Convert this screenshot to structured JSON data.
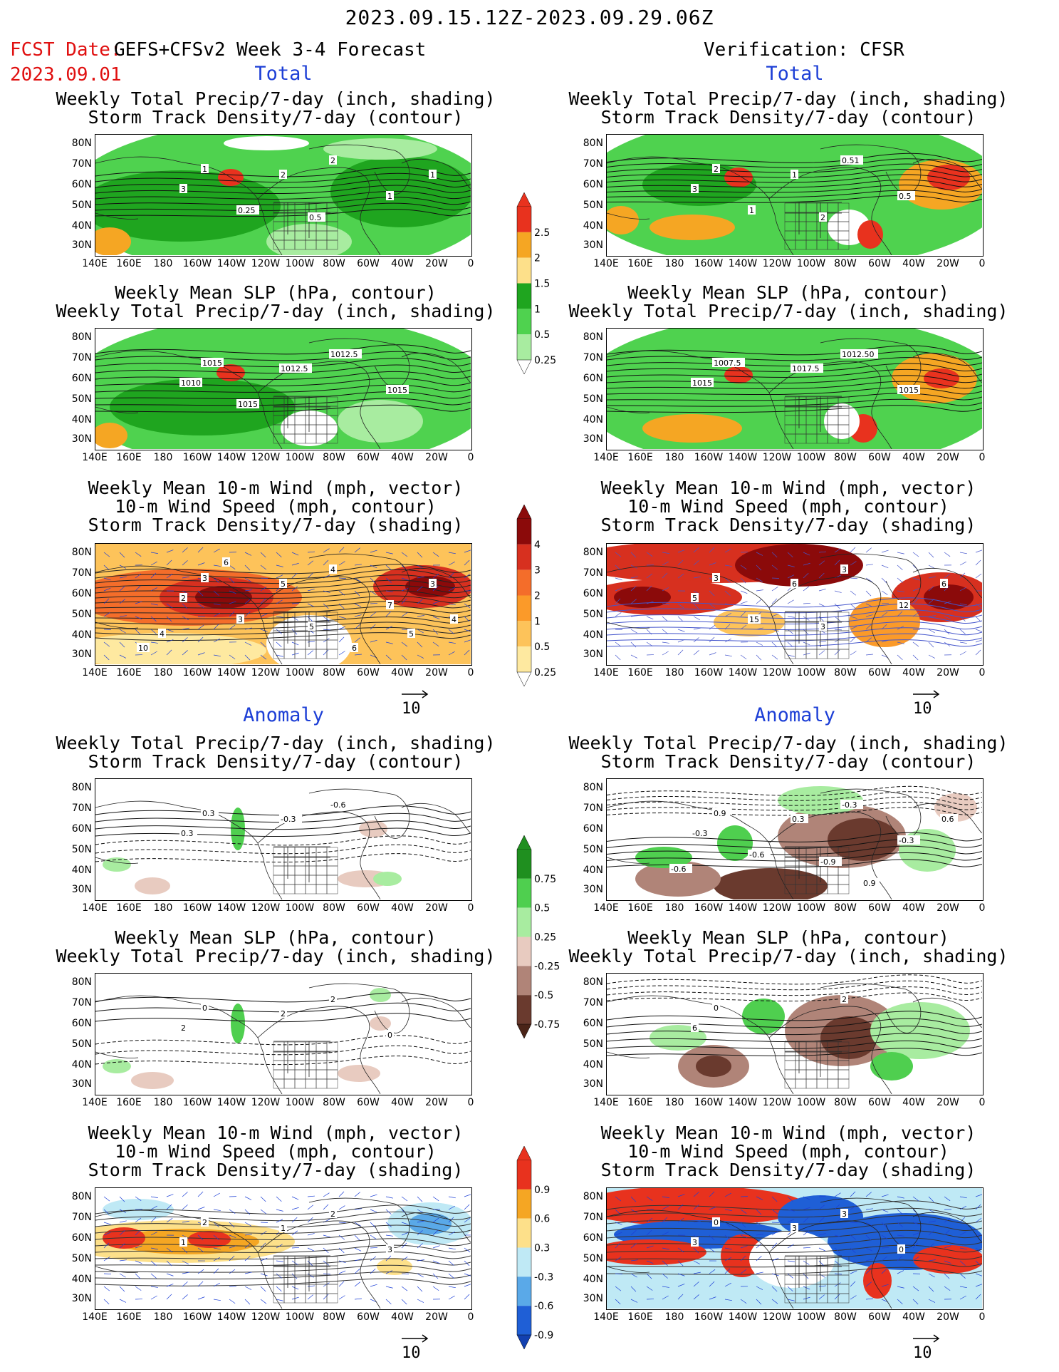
{
  "header": {
    "title": "2023.09.15.12Z-2023.09.29.06Z",
    "fcst_label": "FCST Date:",
    "fcst_model": "GEFS+CFSv2 Week 3-4 Forecast",
    "fcst_date": "2023.09.01",
    "verification": "Verification: CFSR"
  },
  "sections": {
    "total": "Total",
    "anomaly": "Anomaly"
  },
  "titles": {
    "precip_storm": [
      "Weekly Total Precip/7-day (inch, shading)",
      "Storm Track Density/7-day (contour)"
    ],
    "slp_precip": [
      "Weekly Mean SLP (hPa, contour)",
      "Weekly Total Precip/7-day (inch, shading)"
    ],
    "wind_storm": [
      "Weekly Mean 10-m Wind (mph, vector)",
      "10-m Wind Speed (mph, contour)",
      "Storm Track Density/7-day (shading)"
    ]
  },
  "axes": {
    "lat_labels": [
      "80N",
      "70N",
      "60N",
      "50N",
      "40N",
      "30N"
    ],
    "lon_labels": [
      "140E",
      "160E",
      "180",
      "160W",
      "140W",
      "120W",
      "100W",
      "80W",
      "60W",
      "40W",
      "20W",
      "0"
    ]
  },
  "vector_ref": {
    "value": "10"
  },
  "colorbars": {
    "precip_total": {
      "labels": [
        "2.5",
        "2",
        "1.5",
        "1",
        "0.5",
        "0.25"
      ],
      "colors": [
        "#e8321e",
        "#f5a623",
        "#fde08a",
        "#1fa51f",
        "#4fd24f",
        "#a8eca0"
      ]
    },
    "storm_total": {
      "labels": [
        "4",
        "3",
        "2",
        "1",
        "0.5",
        "0.25"
      ],
      "colors": [
        "#8b0a0a",
        "#d7301f",
        "#f46d2a",
        "#fb9a29",
        "#fdc35a",
        "#fee9a0"
      ]
    },
    "precip_anom": {
      "labels": [
        "0.75",
        "0.5",
        "0.25",
        "-0.25",
        "-0.5",
        "-0.75"
      ],
      "colors": [
        "#1f8f1f",
        "#4fcf4f",
        "#a8eca0",
        "#e8cbc0",
        "#b08478",
        "#6a3a2e"
      ]
    },
    "storm_anom": {
      "labels": [
        "0.9",
        "0.6",
        "0.3",
        "-0.3",
        "-0.6",
        "-0.9"
      ],
      "colors": [
        "#e8321e",
        "#f5a623",
        "#fde08a",
        "#bfe9f5",
        "#5aa9e8",
        "#1f5fd6"
      ]
    }
  },
  "contour_labels": {
    "p1": [
      "1",
      "2",
      "3",
      "2",
      "1",
      "0.25",
      "0.5",
      "1"
    ],
    "p2": [
      "1015",
      "1012.5",
      "1010",
      "1012.5",
      "1015",
      "1015"
    ],
    "p3": [
      "3",
      "4",
      "2",
      "5",
      "7",
      "3",
      "5",
      "3",
      "4",
      "6",
      "5",
      "6",
      "4",
      "10"
    ],
    "p4": [
      "0.3",
      "-0.6",
      "0.3",
      "-0.3"
    ],
    "p5": [
      "0",
      "2",
      "2",
      "2",
      "0"
    ],
    "p6": [
      "2",
      "2",
      "1",
      "1",
      "3"
    ],
    "q1": [
      "2",
      "0.51",
      "3",
      "1",
      "0.5",
      "1",
      "2"
    ],
    "q2": [
      "1007.5",
      "1012.50",
      "1015",
      "1017.5",
      "1015"
    ],
    "q3": [
      "3",
      "3",
      "5",
      "6",
      "12",
      "15",
      "3",
      "6"
    ],
    "q4": [
      "0.9",
      "-0.3",
      "-0.3",
      "0.3",
      "-0.3",
      "-0.6",
      "-0.9",
      "0.6",
      "-0.6",
      "0.9"
    ],
    "q5": [
      "0",
      "2",
      "6"
    ],
    "q6": [
      "0",
      "3",
      "3",
      "3",
      "0"
    ]
  }
}
